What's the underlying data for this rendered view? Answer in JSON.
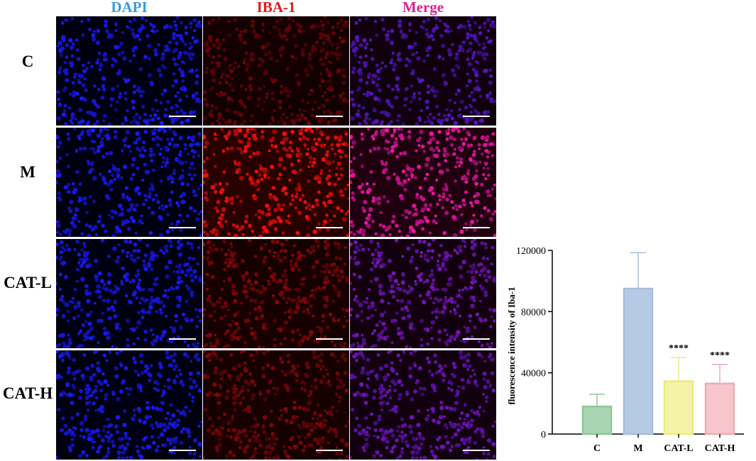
{
  "micrograph": {
    "columns": [
      {
        "key": "dapi",
        "label": "DAPI",
        "color": "#3b9ae0"
      },
      {
        "key": "iba1",
        "label": "IBA-1",
        "color": "#e31a1c"
      },
      {
        "key": "merge",
        "label": "Merge",
        "color": "#e0208f"
      }
    ],
    "rows": [
      {
        "key": "c",
        "label": "C",
        "iba_level": 0.25
      },
      {
        "key": "m",
        "label": "M",
        "iba_level": 1.0
      },
      {
        "key": "catl",
        "label": "CAT-L",
        "iba_level": 0.4
      },
      {
        "key": "cath",
        "label": "CAT-H",
        "iba_level": 0.35
      }
    ]
  },
  "chart_data": {
    "type": "bar",
    "categories": [
      "C",
      "M",
      "CAT-L",
      "CAT-H"
    ],
    "values": [
      18000,
      95000,
      34500,
      33000
    ],
    "error_upper": [
      26000,
      118500,
      50000,
      45500
    ],
    "significance": [
      "",
      "",
      "****",
      "****"
    ],
    "ylabel": "fluorescence intensity of Iba-1",
    "ylim": [
      0,
      120000
    ],
    "yticks": [
      0,
      40000,
      80000,
      120000
    ],
    "ytick_labels": [
      "0",
      "40000",
      "80000",
      "120000"
    ],
    "grid": false,
    "colors": [
      "#a8d5b1",
      "#b6cbe3",
      "#f4f3a6",
      "#f5c7cd"
    ],
    "edge_colors": [
      "#8fc79c",
      "#a3bfdf",
      "#eeeb7a",
      "#f0aab4"
    ]
  }
}
